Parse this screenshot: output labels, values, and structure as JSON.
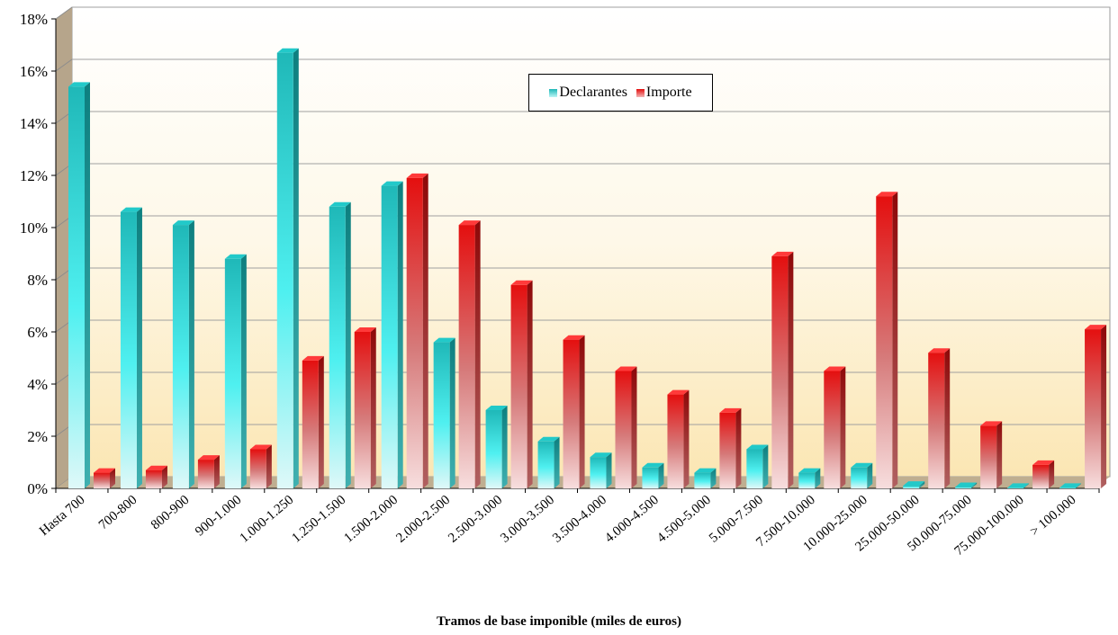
{
  "colors": {
    "declarantes": "#22c5c5",
    "importe": "#e61e1e",
    "background": "#fdf3d6"
  },
  "chart_data": {
    "type": "bar",
    "xlabel": "Tramos de base imponible (miles de euros)",
    "ylabel": "",
    "ylim": [
      0,
      18
    ],
    "yticks": [
      "0%",
      "2%",
      "4%",
      "6%",
      "8%",
      "10%",
      "12%",
      "14%",
      "16%",
      "18%"
    ],
    "legend_position": "top-center",
    "categories": [
      "Hasta 700",
      "700-800",
      "800-900",
      "900-1.000",
      "1.000-1.250",
      "1.250-1.500",
      "1.500-2.000",
      "2.000-2.500",
      "2.500-3.000",
      "3.000-3.500",
      "3.500-4.000",
      "4.000-4.500",
      "4.500-5.000",
      "5.000-7.500",
      "7.500-10.000",
      "10.000-25.000",
      "25.000-50.000",
      "50.000-75.000",
      "75.000-100.000",
      "> 100.000"
    ],
    "series": [
      {
        "name": "Declarantes",
        "values": [
          15.4,
          10.6,
          10.1,
          8.8,
          16.7,
          10.8,
          11.6,
          5.6,
          3.0,
          1.8,
          1.2,
          0.8,
          0.6,
          1.5,
          0.6,
          0.8,
          0.1,
          0.05,
          0.02,
          0.02
        ]
      },
      {
        "name": "Importe",
        "values": [
          0.6,
          0.7,
          1.1,
          1.5,
          4.9,
          6.0,
          11.9,
          10.1,
          7.8,
          5.7,
          4.5,
          3.6,
          2.9,
          8.9,
          4.5,
          11.2,
          5.2,
          2.4,
          0.9,
          6.1
        ]
      }
    ]
  }
}
